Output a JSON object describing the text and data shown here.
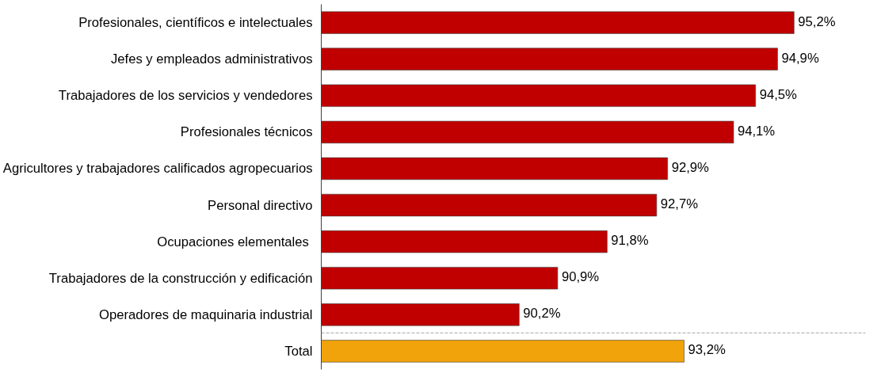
{
  "chart_data": {
    "type": "bar",
    "orientation": "horizontal",
    "categories": [
      "Profesionales, científicos e intelectuales",
      "Jefes y empleados administrativos",
      "Trabajadores de los servicios y vendedores",
      "Profesionales técnicos",
      "Agricultores y trabajadores calificados agropecuarios",
      "Personal directivo",
      "Ocupaciones elementales ",
      "Trabajadores de la construcción y edificación",
      "Operadores de maquinaria industrial",
      "Total"
    ],
    "values": [
      95.2,
      94.9,
      94.5,
      94.1,
      92.9,
      92.7,
      91.8,
      90.9,
      90.2,
      93.2
    ],
    "colors": [
      "#c00000",
      "#c00000",
      "#c00000",
      "#c00000",
      "#c00000",
      "#c00000",
      "#c00000",
      "#c00000",
      "#c00000",
      "#f0a30a"
    ],
    "value_labels": [
      "95,2%",
      "94,9%",
      "94,5%",
      "94,1%",
      "92,9%",
      "92,7%",
      "91,8%",
      "90,9%",
      "90,2%",
      "93,2%"
    ],
    "xlim": [
      86.6,
      96.5
    ],
    "tick_labels": "y"
  }
}
